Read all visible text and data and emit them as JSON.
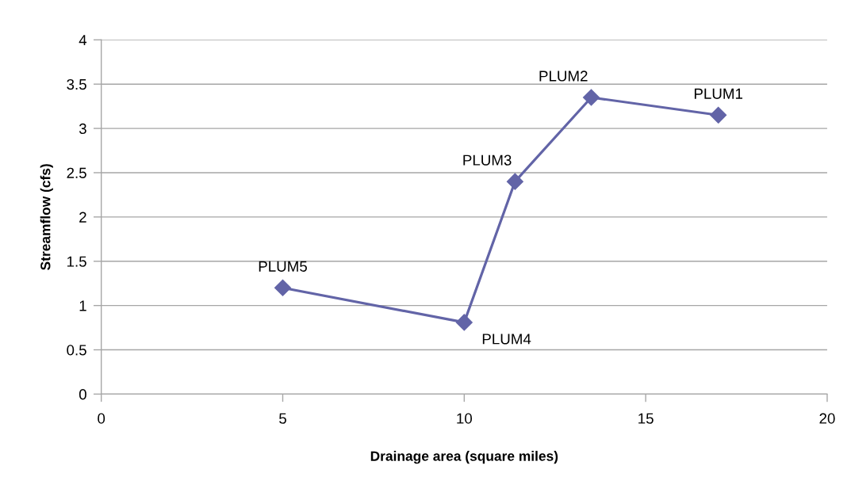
{
  "chart_data": {
    "type": "line",
    "xlabel": "Drainage area (square miles)",
    "ylabel": "Streamflow (cfs)",
    "x": [
      5,
      10,
      11.4,
      13.5,
      17
    ],
    "series": [
      {
        "color": "#6264a7",
        "values": [
          1.2,
          0.81,
          2.4,
          3.35,
          3.15
        ]
      }
    ],
    "xlim": [
      0,
      20
    ],
    "xticks": [
      0,
      5,
      10,
      15,
      20
    ],
    "ylim": [
      0,
      4
    ],
    "yticks": [
      0,
      0.5,
      1,
      1.5,
      2,
      2.5,
      3,
      3.5,
      4
    ],
    "grid": "y",
    "marker": "diamond",
    "line_style": "solid",
    "annotations": [
      {
        "text": "PLUM5",
        "x": 5,
        "y": 1.2
      },
      {
        "text": "PLUM4",
        "x": 10,
        "y": 0.81
      },
      {
        "text": "PLUM3",
        "x": 11.4,
        "y": 2.4
      },
      {
        "text": "PLUM2",
        "x": 13.5,
        "y": 3.35
      },
      {
        "text": "PLUM1",
        "x": 17,
        "y": 3.15
      }
    ]
  }
}
